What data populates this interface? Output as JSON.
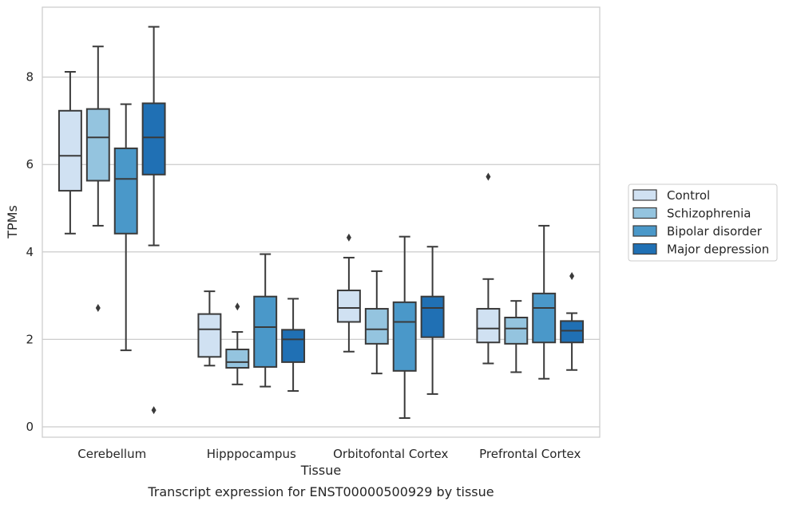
{
  "caption": "Transcript expression for ENST00000500929 by tissue",
  "chart_data": {
    "type": "boxplot",
    "title": "",
    "xlabel": "Tissue",
    "ylabel": "TPMs",
    "ylim": [
      -0.2,
      9.6
    ],
    "yticks": [
      0,
      2,
      4,
      6,
      8
    ],
    "grid": "horizontal",
    "legend_position": "right",
    "categories": [
      "Cerebellum",
      "Hipppocampus",
      "Orbitofontal Cortex",
      "Prefrontal Cortex"
    ],
    "series": [
      {
        "name": "Control",
        "color": "#d0e1f2",
        "boxes": [
          {
            "whislo": 4.42,
            "q1": 5.4,
            "med": 6.2,
            "q3": 7.23,
            "whishi": 8.12,
            "fliers": []
          },
          {
            "whislo": 1.4,
            "q1": 1.6,
            "med": 2.23,
            "q3": 2.58,
            "whishi": 3.1,
            "fliers": []
          },
          {
            "whislo": 1.72,
            "q1": 2.4,
            "med": 2.72,
            "q3": 3.12,
            "whishi": 3.87,
            "fliers": [
              4.33
            ]
          },
          {
            "whislo": 1.45,
            "q1": 1.93,
            "med": 2.25,
            "q3": 2.7,
            "whishi": 3.38,
            "fliers": [
              5.72
            ]
          }
        ]
      },
      {
        "name": "Schizophrenia",
        "color": "#94c4df",
        "boxes": [
          {
            "whislo": 4.6,
            "q1": 5.63,
            "med": 6.62,
            "q3": 7.27,
            "whishi": 8.7,
            "fliers": [
              2.72
            ]
          },
          {
            "whislo": 0.97,
            "q1": 1.35,
            "med": 1.48,
            "q3": 1.77,
            "whishi": 2.17,
            "fliers": [
              2.75
            ]
          },
          {
            "whislo": 1.22,
            "q1": 1.9,
            "med": 2.23,
            "q3": 2.7,
            "whishi": 3.56,
            "fliers": []
          },
          {
            "whislo": 1.25,
            "q1": 1.9,
            "med": 2.25,
            "q3": 2.5,
            "whishi": 2.88,
            "fliers": []
          }
        ]
      },
      {
        "name": "Bipolar disorder",
        "color": "#4a98c9",
        "boxes": [
          {
            "whislo": 1.75,
            "q1": 4.42,
            "med": 5.67,
            "q3": 6.37,
            "whishi": 7.38,
            "fliers": []
          },
          {
            "whislo": 0.92,
            "q1": 1.37,
            "med": 2.28,
            "q3": 2.98,
            "whishi": 3.95,
            "fliers": []
          },
          {
            "whislo": 0.2,
            "q1": 1.28,
            "med": 2.4,
            "q3": 2.85,
            "whishi": 4.35,
            "fliers": []
          },
          {
            "whislo": 1.1,
            "q1": 1.93,
            "med": 2.72,
            "q3": 3.05,
            "whishi": 4.6,
            "fliers": []
          }
        ]
      },
      {
        "name": "Major depression",
        "color": "#2070b4",
        "boxes": [
          {
            "whislo": 4.15,
            "q1": 5.77,
            "med": 6.62,
            "q3": 7.4,
            "whishi": 9.15,
            "fliers": [
              0.38
            ]
          },
          {
            "whislo": 0.82,
            "q1": 1.48,
            "med": 2.0,
            "q3": 2.22,
            "whishi": 2.93,
            "fliers": []
          },
          {
            "whislo": 0.75,
            "q1": 2.05,
            "med": 2.72,
            "q3": 2.98,
            "whishi": 4.12,
            "fliers": []
          },
          {
            "whislo": 1.3,
            "q1": 1.93,
            "med": 2.2,
            "q3": 2.42,
            "whishi": 2.6,
            "fliers": [
              3.45
            ]
          }
        ]
      }
    ]
  }
}
